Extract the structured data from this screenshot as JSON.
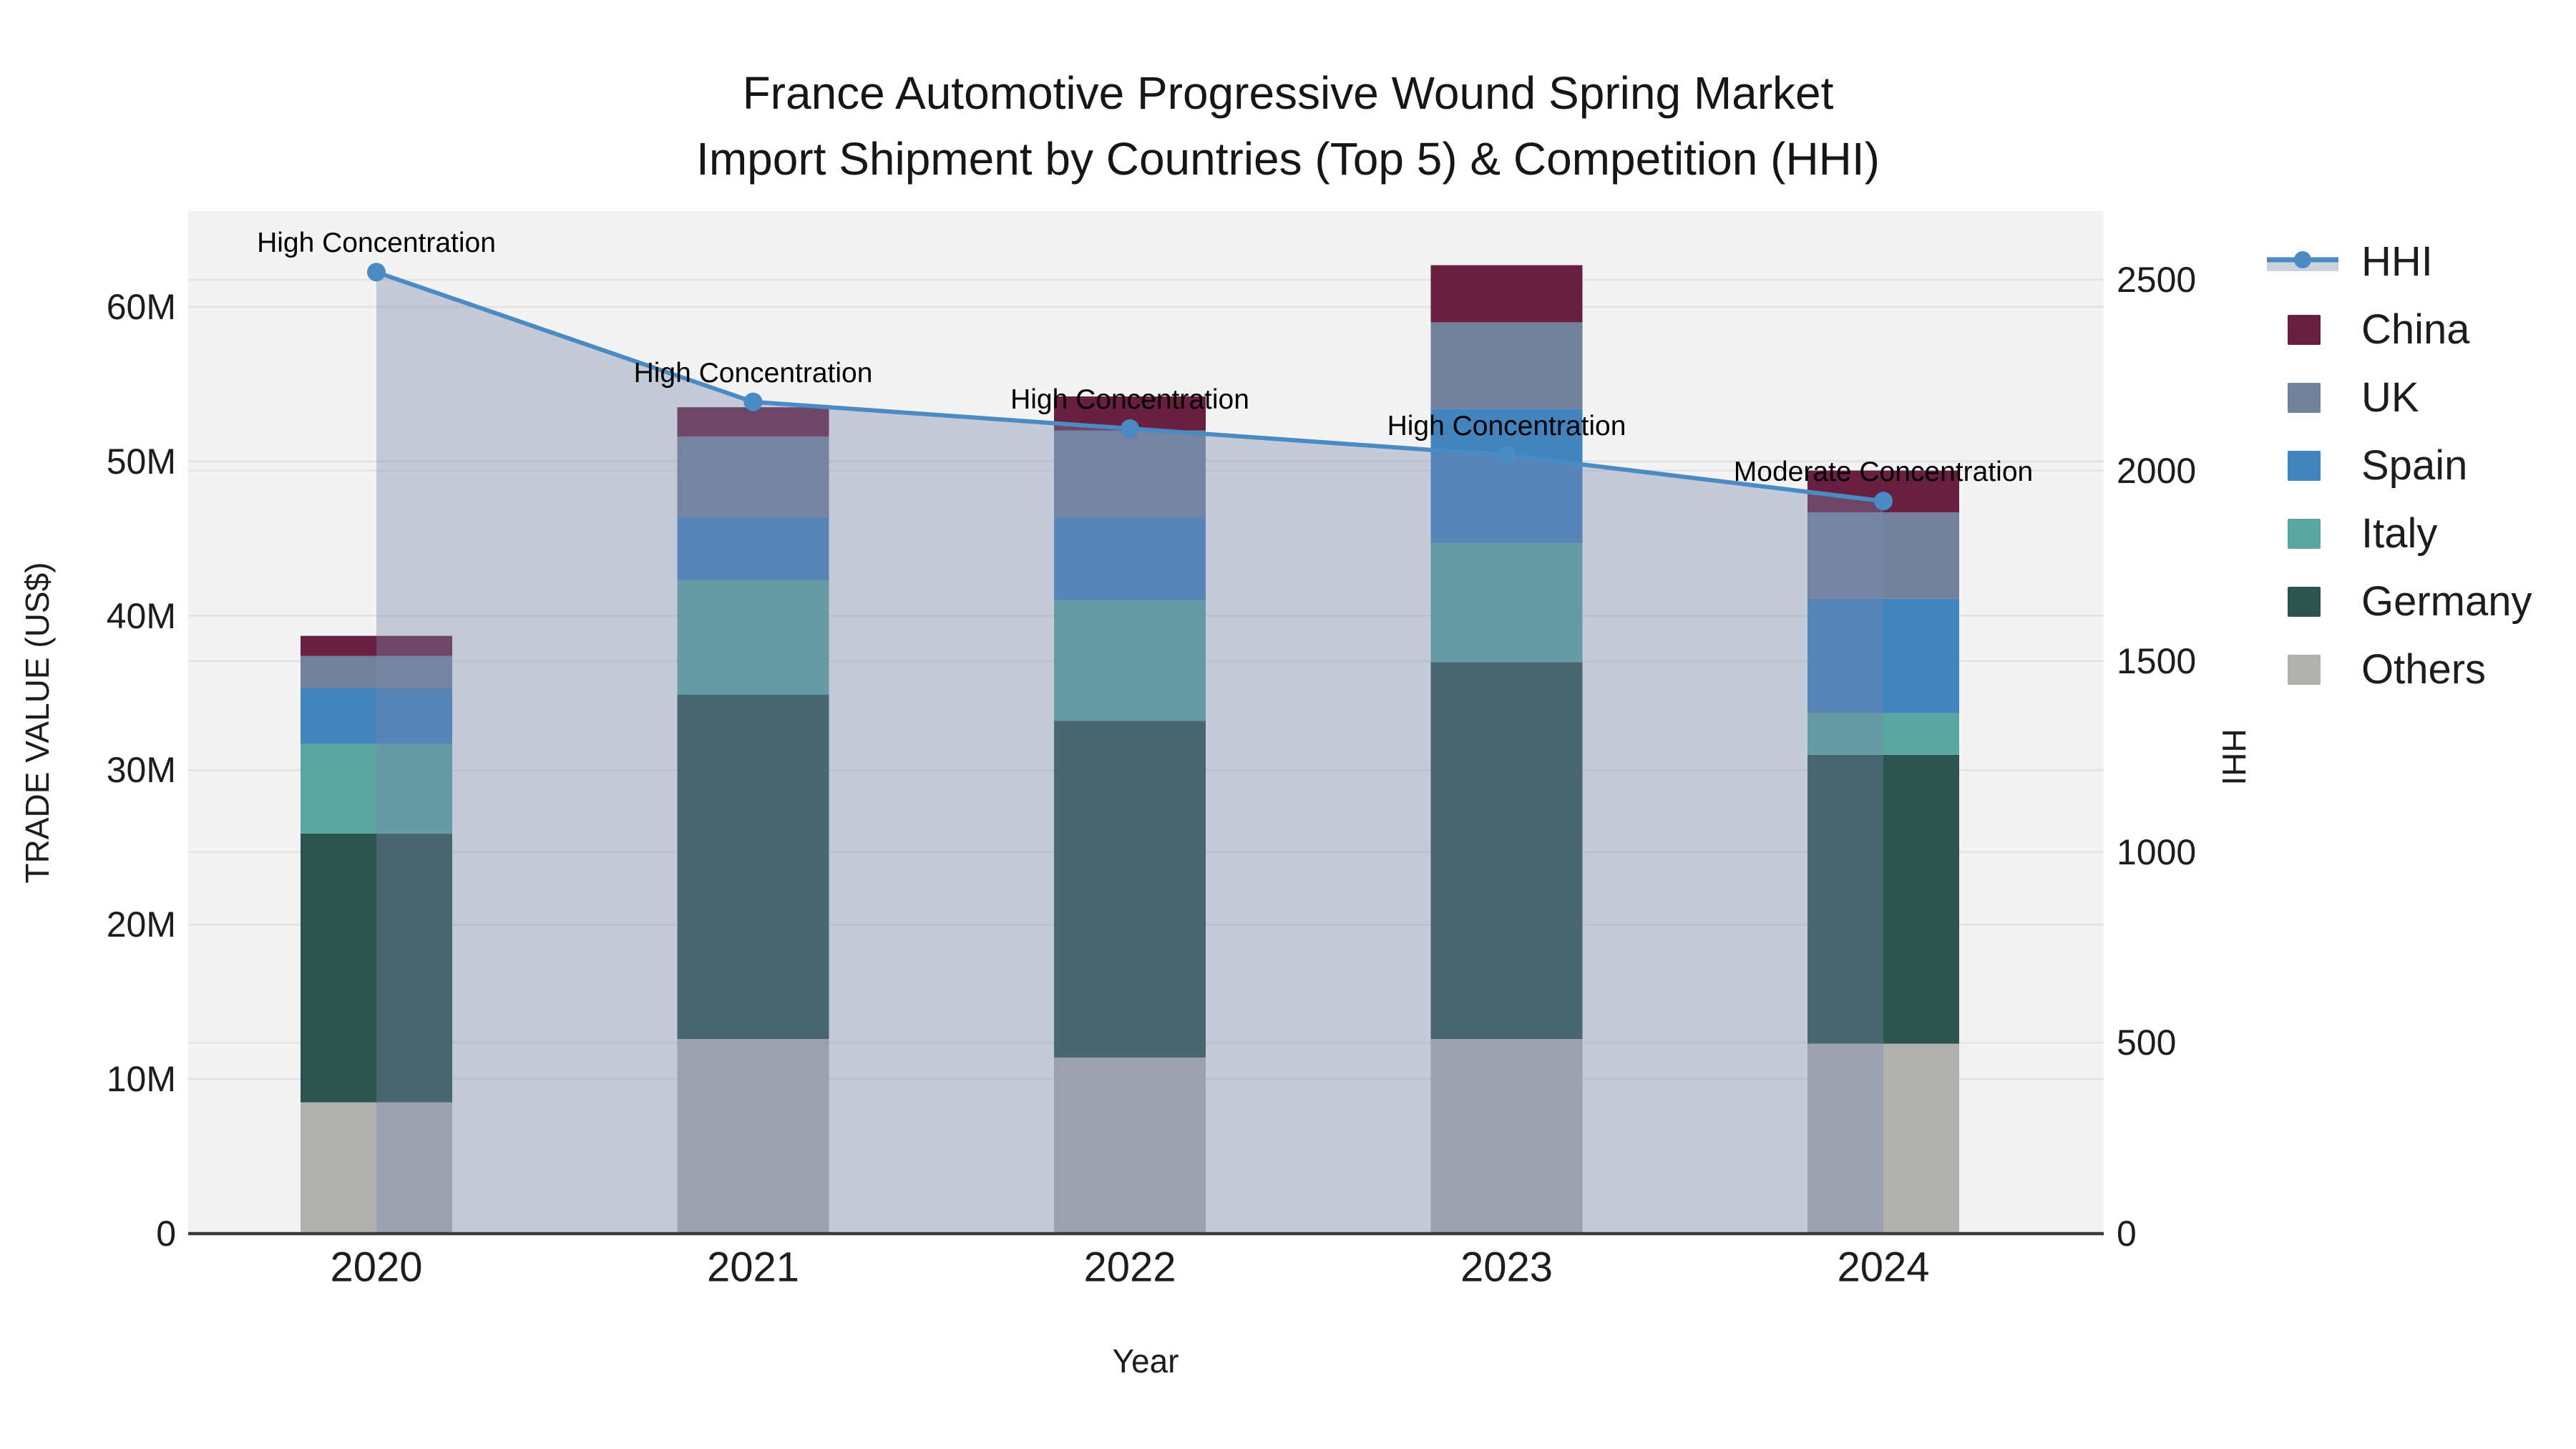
{
  "title": {
    "line1": "France Automotive Progressive Wound Spring Market",
    "line2": "Import Shipment by Countries (Top 5) & Competition (HHI)"
  },
  "colors": {
    "plot_bg": "#F3F3F3",
    "grid": "#E3E3E6",
    "axis_line": "#3B3B3B",
    "hhi_line": "#4A8BC4",
    "hhi_area_fill": "rgba(120,138,170,0.38)",
    "hhi_legend_band": "#CBD2DC",
    "china": "#681F40",
    "uk": "#73829B",
    "spain": "#4384BE",
    "italy": "#5CA6A1",
    "germany": "#2C534E",
    "others": "#B0B0AE"
  },
  "legend": {
    "items": [
      {
        "label": "HHI",
        "type": "line-area"
      },
      {
        "label": "China",
        "type": "square",
        "color": "#681F40"
      },
      {
        "label": "UK",
        "type": "square",
        "color": "#73829B"
      },
      {
        "label": "Spain",
        "type": "square",
        "color": "#4384BE"
      },
      {
        "label": "Italy",
        "type": "square",
        "color": "#5CA6A1"
      },
      {
        "label": "Germany",
        "type": "square",
        "color": "#2C534E"
      },
      {
        "label": "Others",
        "type": "square",
        "color": "#B0B0AE"
      }
    ]
  },
  "chart_data": {
    "type": "bar+line",
    "categories": [
      "2020",
      "2021",
      "2022",
      "2023",
      "2024"
    ],
    "bar_value_unit": "million US$",
    "stack_order": "bottom to top",
    "series": [
      {
        "name": "Others",
        "color": "#B0B0AE",
        "values": [
          8.5,
          12.6,
          11.4,
          12.6,
          12.3
        ]
      },
      {
        "name": "Germany",
        "color": "#2C534E",
        "values": [
          17.4,
          22.3,
          21.8,
          24.4,
          18.7
        ]
      },
      {
        "name": "Italy",
        "color": "#5CA6A1",
        "values": [
          5.8,
          7.4,
          7.8,
          7.7,
          2.7
        ]
      },
      {
        "name": "Spain",
        "color": "#4384BE",
        "values": [
          3.6,
          4.1,
          5.4,
          8.7,
          7.4
        ]
      },
      {
        "name": "UK",
        "color": "#73829B",
        "values": [
          2.1,
          5.2,
          5.6,
          5.6,
          5.6
        ]
      },
      {
        "name": "China",
        "color": "#681F40",
        "values": [
          1.3,
          1.9,
          2.2,
          3.7,
          2.7
        ]
      }
    ],
    "bar_totals": [
      38.7,
      53.5,
      54.2,
      62.7,
      49.4
    ],
    "line": {
      "name": "HHI",
      "color": "#4A8BC4",
      "values": [
        2520,
        2180,
        2110,
        2040,
        1920
      ],
      "area_under_line": true
    },
    "annotations": [
      "High Concentration",
      "High Concentration",
      "High Concentration",
      "High Concentration",
      "Moderate Concentration"
    ],
    "y_left": {
      "label": "TRADE VALUE (US$)",
      "ticks": [
        "0",
        "10M",
        "20M",
        "30M",
        "40M",
        "50M",
        "60M"
      ],
      "tick_values": [
        0,
        10,
        20,
        30,
        40,
        50,
        60
      ],
      "range": [
        0,
        66.2
      ],
      "grid": true
    },
    "y_right": {
      "label": "HHI",
      "ticks": [
        "0",
        "500",
        "1000",
        "1500",
        "2000",
        "2500"
      ],
      "tick_values": [
        0,
        500,
        1000,
        1500,
        2000,
        2500
      ],
      "range": [
        0,
        2680
      ],
      "grid": true
    },
    "x_label": "Year",
    "legend_position": "right"
  }
}
